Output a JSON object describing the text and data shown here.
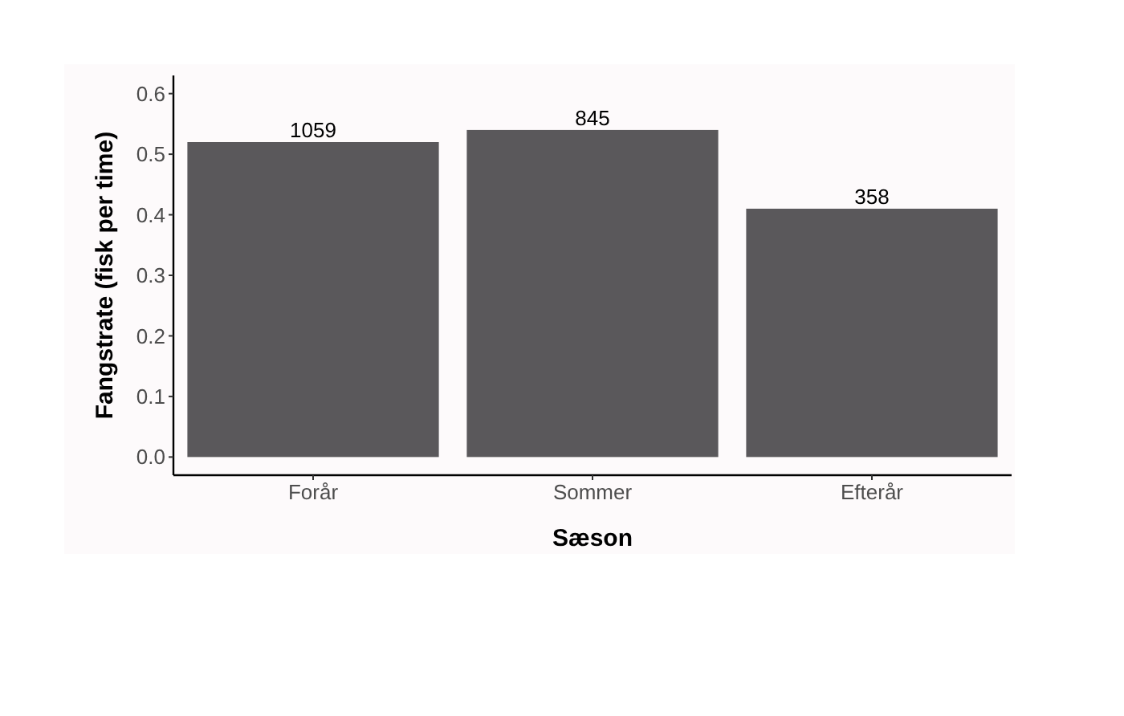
{
  "chart_data": {
    "type": "bar",
    "xlabel": "Sæson",
    "ylabel": "Fangstrate (fisk per time)",
    "categories": [
      "Forår",
      "Sommer",
      "Efterår"
    ],
    "values": [
      0.52,
      0.54,
      0.41
    ],
    "annotations": [
      {
        "text": "1059",
        "x": "Forår",
        "y": 0.52
      },
      {
        "text": "845",
        "x": "Sommer",
        "y": 0.54
      },
      {
        "text": "358",
        "x": "Efterår",
        "y": 0.41
      }
    ],
    "color": "#5a585b",
    "ylim": [
      -0.03,
      0.63
    ],
    "yticks": [
      {
        "value": 0,
        "label": "0.0"
      },
      {
        "value": 0.1,
        "label": "0.1"
      },
      {
        "value": 0.2,
        "label": "0.2"
      },
      {
        "value": 0.3,
        "label": "0.3"
      },
      {
        "value": 0.4,
        "label": "0.4"
      },
      {
        "value": 0.5,
        "label": "0.5"
      },
      {
        "value": 0.6,
        "label": "0.6"
      }
    ],
    "grid": false
  }
}
